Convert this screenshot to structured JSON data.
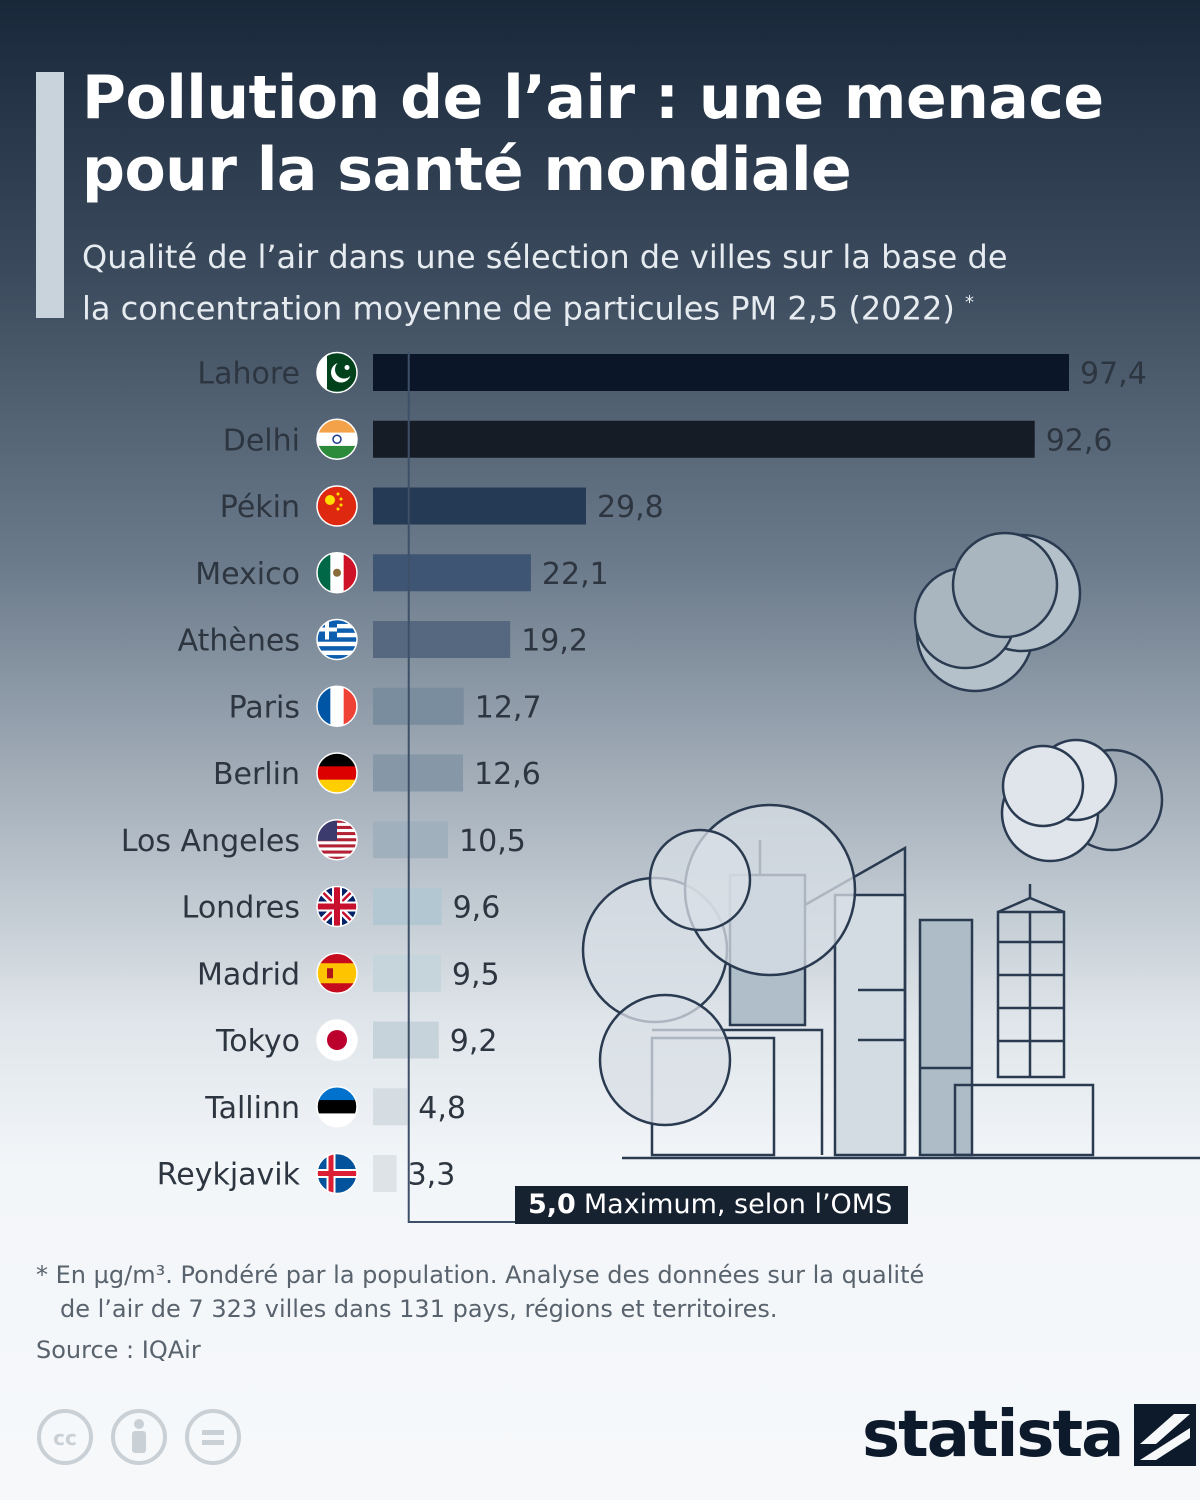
{
  "header": {
    "title_line1": "Pollution de l’air : une menace",
    "title_line2": "pour la santé mondiale",
    "subtitle_line1": "Qualité de l’air dans une sélection de villes sur la base de",
    "subtitle_line2": "la concentration moyenne de particules PM 2,5 (2022)",
    "subtitle_mark": "*"
  },
  "chart_data": {
    "type": "bar",
    "orientation": "horizontal",
    "categories": [
      "Lahore",
      "Delhi",
      "Pékin",
      "Mexico",
      "Athènes",
      "Paris",
      "Berlin",
      "Los Angeles",
      "Londres",
      "Madrid",
      "Tokyo",
      "Tallinn",
      "Reykjavik"
    ],
    "values": [
      97.4,
      92.6,
      29.8,
      22.1,
      19.2,
      12.7,
      12.6,
      10.5,
      9.6,
      9.5,
      9.2,
      4.8,
      3.3
    ],
    "value_labels": [
      "97,4",
      "92,6",
      "29,8",
      "22,1",
      "19,2",
      "12,7",
      "12,6",
      "10,5",
      "9,6",
      "9,5",
      "9,2",
      "4,8",
      "3,3"
    ],
    "flags": [
      "pakistan-flag",
      "india-flag",
      "china-flag",
      "mexico-flag",
      "greece-flag",
      "france-flag",
      "germany-flag",
      "usa-flag",
      "uk-flag",
      "spain-flag",
      "japan-flag",
      "estonia-flag",
      "iceland-flag"
    ],
    "bar_colors": [
      "#0b1628",
      "#161c26",
      "#243a55",
      "#3e5673",
      "#56687f",
      "#7a8d9f",
      "#8697a7",
      "#a0b0bd",
      "#b3c7d2",
      "#c6d4dc",
      "#c7d3da",
      "#d5dde2",
      "#dde3e6"
    ],
    "reference_line": {
      "value": 5.0,
      "value_label": "5,0",
      "label": "Maximum, selon l’OMS"
    },
    "xlim": [
      0,
      97.4
    ]
  },
  "footer": {
    "note_line1": "* En µg/m³. Pondéré par la population. Analyse des données sur la qualité",
    "note_line2": "de l’air de 7 323 villes dans 131 pays, régions et territoires.",
    "source": "Source : IQAir",
    "brand": "statista"
  }
}
